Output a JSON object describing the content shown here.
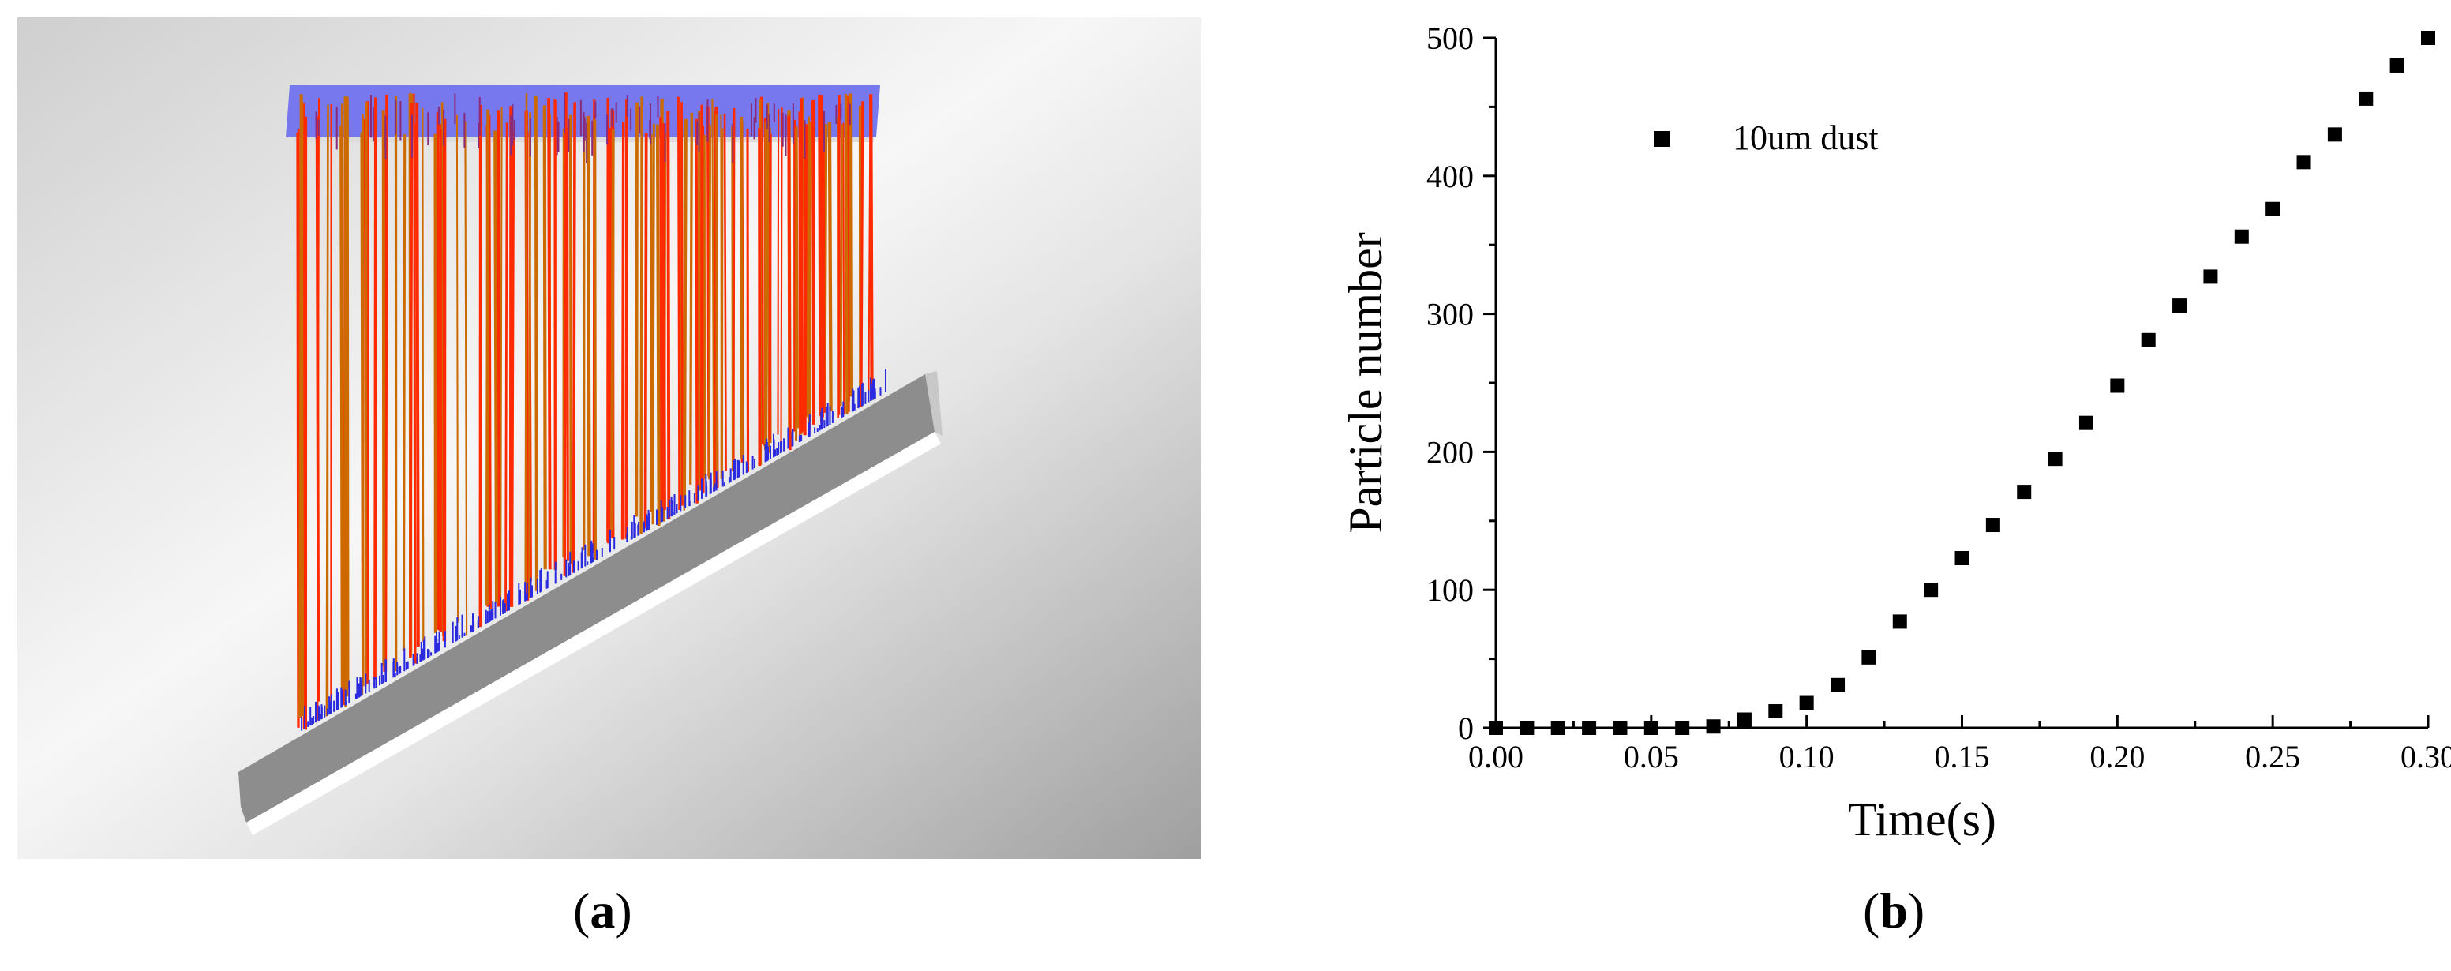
{
  "panels": {
    "a": {
      "letter": "a"
    },
    "b": {
      "letter": "b"
    }
  },
  "colors": {
    "background_light": "#f2f2f2",
    "background_dark": "#a9a9a9",
    "inlet_blue": "#7777ee",
    "trajectory_red": "#ff2a00",
    "trajectory_orange": "#cc6a00",
    "deposit_blue": "#2a2ae0",
    "plate_gray": "#8c8c8c",
    "marker": "#000000"
  },
  "chart_data": {
    "type": "scatter",
    "xlabel": "Time(s)",
    "ylabel": "Particle number",
    "xlim": [
      0,
      0.3
    ],
    "ylim": [
      0,
      500
    ],
    "x_ticks": [
      "0.00",
      "0.05",
      "0.10",
      "0.15",
      "0.20",
      "0.25",
      "0.30"
    ],
    "y_ticks": [
      "0",
      "100",
      "200",
      "300",
      "400",
      "500"
    ],
    "legend_position": "top-left",
    "series": [
      {
        "name": "10um dust",
        "x": [
          0.0,
          0.01,
          0.02,
          0.03,
          0.04,
          0.05,
          0.06,
          0.07,
          0.08,
          0.09,
          0.1,
          0.11,
          0.12,
          0.13,
          0.14,
          0.15,
          0.16,
          0.17,
          0.18,
          0.19,
          0.2,
          0.21,
          0.22,
          0.23,
          0.24,
          0.25,
          0.26,
          0.27,
          0.28,
          0.29,
          0.3
        ],
        "y": [
          0,
          0,
          0,
          0,
          0,
          0,
          0,
          1,
          6,
          12,
          18,
          31,
          51,
          77,
          100,
          123,
          147,
          171,
          195,
          221,
          248,
          281,
          306,
          327,
          356,
          376,
          410,
          430,
          456,
          480,
          500
        ]
      }
    ]
  }
}
